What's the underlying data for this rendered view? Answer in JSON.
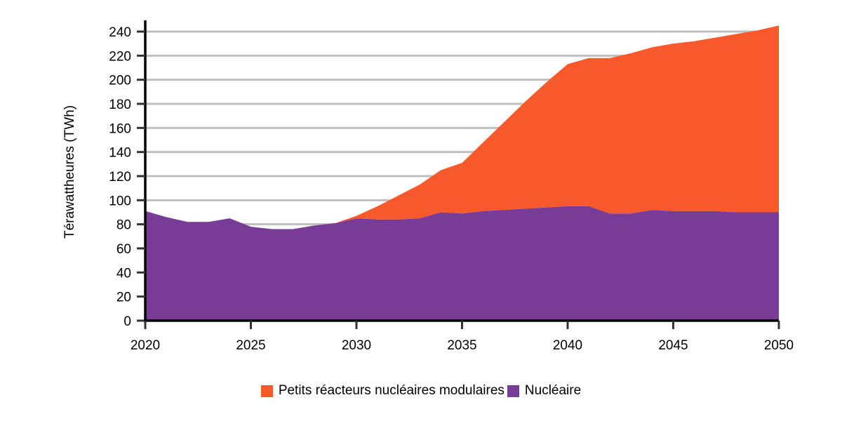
{
  "chart_data": {
    "type": "area",
    "stacked": true,
    "title": "",
    "xlabel": "",
    "ylabel": "Térawattheures (TWh)",
    "xlim": [
      2020,
      2050
    ],
    "ylim": [
      0,
      250
    ],
    "x_ticks": [
      2020,
      2025,
      2030,
      2035,
      2040,
      2045,
      2050
    ],
    "x_tick_labels": [
      "2020",
      "2025",
      "2030",
      "2035",
      "2040",
      "2045",
      "2050"
    ],
    "y_ticks": [
      0,
      20,
      40,
      60,
      80,
      100,
      120,
      140,
      160,
      180,
      200,
      220,
      240
    ],
    "y_tick_labels": [
      "0",
      "20",
      "40",
      "60",
      "80",
      "100",
      "120",
      "140",
      "160",
      "180",
      "200",
      "220",
      "240"
    ],
    "grid": true,
    "legend_position": "bottom",
    "x": [
      2020,
      2021,
      2022,
      2023,
      2024,
      2025,
      2026,
      2027,
      2028,
      2029,
      2030,
      2031,
      2032,
      2033,
      2034,
      2035,
      2036,
      2037,
      2038,
      2039,
      2040,
      2041,
      2042,
      2043,
      2044,
      2045,
      2046,
      2047,
      2048,
      2049,
      2050
    ],
    "series": [
      {
        "name": "Nucléaire",
        "color": "#783c96",
        "values": [
          91,
          86,
          82,
          82,
          85,
          78,
          76,
          76,
          79,
          81,
          85,
          84,
          84,
          85,
          90,
          89,
          91,
          92,
          93,
          94,
          95,
          95,
          89,
          89,
          92,
          91,
          91,
          91,
          90,
          90,
          90
        ]
      },
      {
        "name": "Petits réacteurs nucléaires modulaires",
        "color": "#f7592a",
        "values": [
          0,
          0,
          0,
          0,
          0,
          0,
          0,
          0,
          0,
          0,
          2,
          11,
          20,
          28,
          35,
          42,
          57,
          73,
          89,
          104,
          118,
          123,
          129,
          133,
          135,
          139,
          141,
          144,
          148,
          151,
          155
        ]
      }
    ],
    "legend": [
      {
        "label": "Petits réacteurs nucléaires modulaires",
        "color": "#f7592a"
      },
      {
        "label": "Nucléaire",
        "color": "#783c96"
      }
    ]
  }
}
